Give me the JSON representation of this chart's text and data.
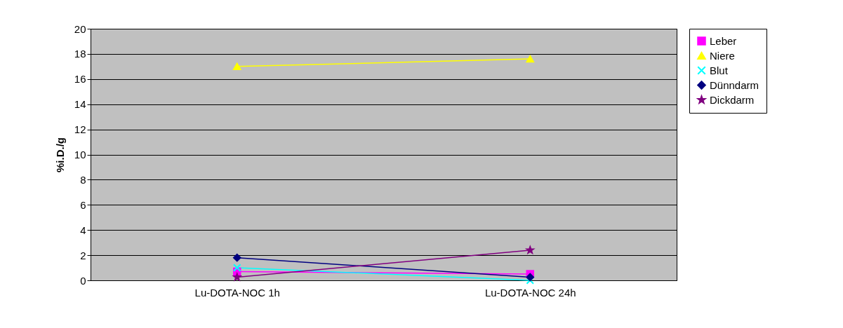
{
  "chart_data": {
    "type": "line",
    "ylabel": "%i.D./g",
    "categories": [
      "Lu-DOTA-NOC 1h",
      "Lu-DOTA-NOC 24h"
    ],
    "series": [
      {
        "name": "Leber",
        "color": "#ff00ff",
        "marker": "square",
        "values": [
          0.7,
          0.5
        ]
      },
      {
        "name": "Niere",
        "color": "#ffff00",
        "marker": "triangle",
        "values": [
          17.0,
          17.6
        ]
      },
      {
        "name": "Blut",
        "color": "#00ffff",
        "marker": "cross",
        "values": [
          1.0,
          0.0
        ]
      },
      {
        "name": "Dünndarm",
        "color": "#000080",
        "marker": "diamond",
        "values": [
          1.8,
          0.25
        ]
      },
      {
        "name": "Dickdarm",
        "color": "#800080",
        "marker": "star",
        "values": [
          0.25,
          2.4
        ]
      }
    ],
    "ylim": [
      0,
      20
    ],
    "yticks": [
      0,
      2,
      4,
      6,
      8,
      10,
      12,
      14,
      16,
      18,
      20
    ],
    "grid": "y",
    "legend": "right"
  }
}
